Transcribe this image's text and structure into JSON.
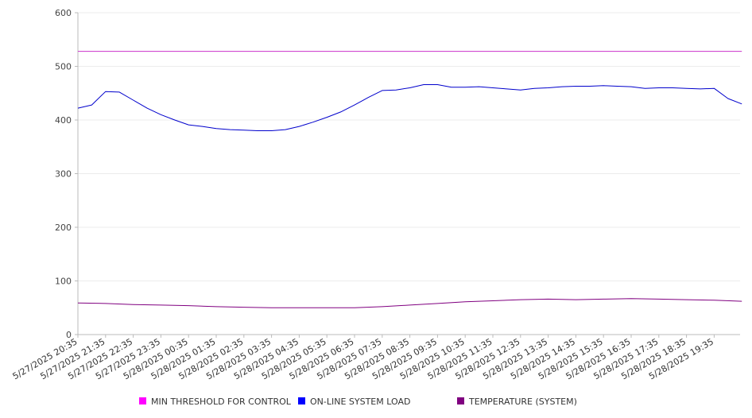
{
  "chart_data": {
    "type": "line",
    "title": "",
    "xlabel": "",
    "ylabel": "",
    "ylim": [
      0,
      600
    ],
    "y_ticks": [
      "0",
      "100",
      "200",
      "300",
      "400",
      "500",
      "600"
    ],
    "x_tick_labels": [
      "5/27/2025 20:35",
      "5/27/2025 21:35",
      "5/27/2025 22:35",
      "5/27/2025 23:35",
      "5/28/2025 00:35",
      "5/28/2025 01:35",
      "5/28/2025 02:35",
      "5/28/2025 03:35",
      "5/28/2025 04:35",
      "5/28/2025 05:35",
      "5/28/2025 06:35",
      "5/28/2025 07:35",
      "5/28/2025 08:35",
      "5/28/2025 09:35",
      "5/28/2025 10:35",
      "5/28/2025 11:35",
      "5/28/2025 12:35",
      "5/28/2025 13:35",
      "5/28/2025 14:35",
      "5/28/2025 15:35",
      "5/28/2025 16:35",
      "5/28/2025 17:35",
      "5/28/2025 18:35",
      "5/28/2025 19:35"
    ],
    "grid": true,
    "legend_position": "bottom",
    "series": [
      {
        "name": "MIN THRESHOLD FOR CONTROL",
        "color": "#CC33CC",
        "legend_color": "#FF00FF",
        "x": [
          "5/27/2025 20:35",
          "5/28/2025 20:35"
        ],
        "values": [
          528,
          528
        ]
      },
      {
        "name": "ON-LINE SYSTEM LOAD",
        "color": "#0000CC",
        "legend_color": "#0000FF",
        "x": [
          "5/27/2025 20:35",
          "5/27/2025 21:05",
          "5/27/2025 21:35",
          "5/27/2025 22:05",
          "5/27/2025 22:35",
          "5/27/2025 23:05",
          "5/27/2025 23:35",
          "5/28/2025 00:05",
          "5/28/2025 00:35",
          "5/28/2025 01:05",
          "5/28/2025 01:35",
          "5/28/2025 02:05",
          "5/28/2025 02:35",
          "5/28/2025 03:05",
          "5/28/2025 03:35",
          "5/28/2025 04:05",
          "5/28/2025 04:35",
          "5/28/2025 05:05",
          "5/28/2025 05:35",
          "5/28/2025 06:05",
          "5/28/2025 06:35",
          "5/28/2025 07:05",
          "5/28/2025 07:35",
          "5/28/2025 08:05",
          "5/28/2025 08:35",
          "5/28/2025 09:05",
          "5/28/2025 09:35",
          "5/28/2025 10:05",
          "5/28/2025 10:35",
          "5/28/2025 11:05",
          "5/28/2025 11:35",
          "5/28/2025 12:05",
          "5/28/2025 12:35",
          "5/28/2025 13:05",
          "5/28/2025 13:35",
          "5/28/2025 14:05",
          "5/28/2025 14:35",
          "5/28/2025 15:05",
          "5/28/2025 15:35",
          "5/28/2025 16:05",
          "5/28/2025 16:35",
          "5/28/2025 17:05",
          "5/28/2025 17:35",
          "5/28/2025 18:05",
          "5/28/2025 18:35",
          "5/28/2025 19:05",
          "5/28/2025 19:35",
          "5/28/2025 20:05",
          "5/28/2025 20:35"
        ],
        "values": [
          422,
          428,
          453,
          452,
          437,
          422,
          410,
          400,
          391,
          388,
          384,
          382,
          381,
          380,
          380,
          382,
          388,
          396,
          405,
          415,
          428,
          442,
          455,
          456,
          460,
          466,
          466,
          461,
          461,
          462,
          460,
          458,
          456,
          459,
          460,
          462,
          463,
          463,
          464,
          463,
          462,
          459,
          460,
          460,
          459,
          458,
          459,
          440,
          430
        ]
      },
      {
        "name": "TEMPERATURE (SYSTEM)",
        "color": "#800080",
        "legend_color": "#800080",
        "x": [
          "5/27/2025 20:35",
          "5/27/2025 21:35",
          "5/27/2025 22:35",
          "5/27/2025 23:35",
          "5/28/2025 00:35",
          "5/28/2025 01:35",
          "5/28/2025 02:35",
          "5/28/2025 03:35",
          "5/28/2025 04:35",
          "5/28/2025 05:35",
          "5/28/2025 06:35",
          "5/28/2025 07:35",
          "5/28/2025 08:35",
          "5/28/2025 09:35",
          "5/28/2025 10:35",
          "5/28/2025 11:35",
          "5/28/2025 12:35",
          "5/28/2025 13:35",
          "5/28/2025 14:35",
          "5/28/2025 15:35",
          "5/28/2025 16:35",
          "5/28/2025 17:35",
          "5/28/2025 18:35",
          "5/28/2025 19:35",
          "5/28/2025 20:35"
        ],
        "values": [
          59,
          58,
          56,
          55,
          54,
          52,
          51,
          50,
          50,
          50,
          50,
          52,
          55,
          58,
          61,
          63,
          65,
          66,
          65,
          66,
          67,
          66,
          65,
          64,
          62
        ]
      }
    ]
  }
}
